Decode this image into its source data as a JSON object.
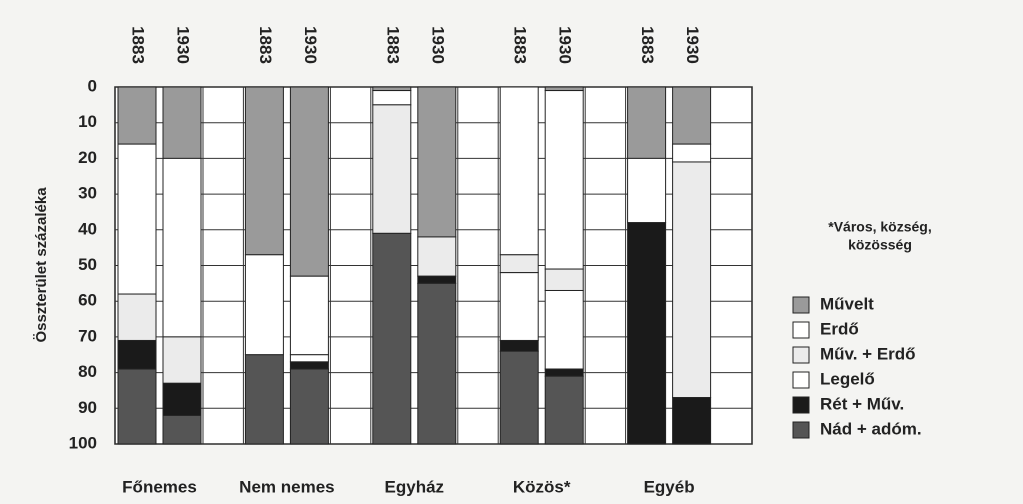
{
  "chart_data": {
    "type": "bar",
    "stacked": true,
    "y_inverted": true,
    "y_label": "Összterület százaléka",
    "groups": [
      "Főnemes",
      "Nem nemes",
      "Egyház",
      "Közös*",
      "Egyéb"
    ],
    "categories": [
      "1883",
      "1930",
      "1883",
      "1930",
      "1883",
      "1930",
      "1883",
      "1930",
      "1883",
      "1930"
    ],
    "series": [
      {
        "name": "Művelt",
        "color": "#9a9a9a",
        "values": [
          16,
          20,
          47,
          53,
          1,
          42,
          0,
          1,
          20,
          16
        ]
      },
      {
        "name": "Erdő",
        "color": "#ffffff",
        "values": [
          42,
          50,
          28,
          22,
          4,
          0,
          47,
          50,
          18,
          5
        ]
      },
      {
        "name": "Műv. + Erdő",
        "color": "#ebebeb",
        "values": [
          13,
          13,
          0,
          0,
          36,
          11,
          5,
          6,
          0,
          66
        ]
      },
      {
        "name": "Legelő",
        "color": "#ffffff",
        "values": [
          0,
          0,
          0,
          2,
          0,
          0,
          19,
          22,
          0,
          0
        ]
      },
      {
        "name": "Rét + Műv.",
        "color": "#1a1a1a",
        "values": [
          8,
          9,
          0,
          2,
          0,
          2,
          3,
          2,
          62,
          13
        ]
      },
      {
        "name": "Nád + adóm.",
        "color": "#555555",
        "values": [
          21,
          8,
          25,
          21,
          59,
          45,
          26,
          19,
          0,
          0
        ]
      }
    ],
    "ylim": [
      0,
      100
    ],
    "yticks": [
      0,
      10,
      20,
      30,
      40,
      50,
      60,
      70,
      80,
      90,
      100
    ],
    "grid": true,
    "legend": "right",
    "annotations": [
      "*Város, község,",
      "közösség"
    ]
  }
}
